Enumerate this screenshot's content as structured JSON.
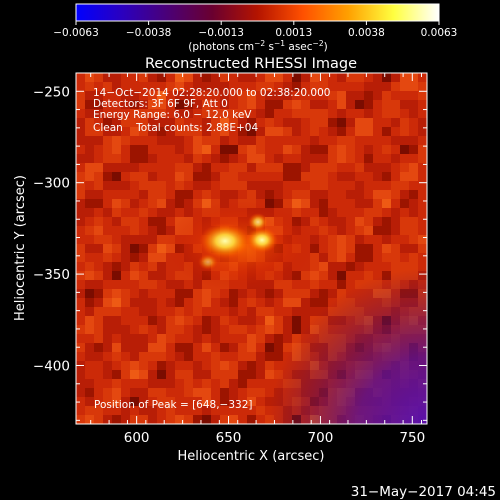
{
  "colorbar": {
    "ticks": [
      "−0.0063",
      "−0.0038",
      "−0.0013",
      "0.0013",
      "0.0038",
      "0.0063"
    ],
    "min": -0.0063,
    "max": 0.0063,
    "units_prefix": "(photons cm",
    "units_exp1": "−2",
    "units_mid1": " s",
    "units_exp2": "−1",
    "units_mid2": " asec",
    "units_exp3": "−2",
    "units_suffix": ")",
    "colors": [
      "#0000ff",
      "#2a00c0",
      "#4a0078",
      "#6a0030",
      "#b41400",
      "#ff5000",
      "#ffa000",
      "#ffff40",
      "#ffffff"
    ]
  },
  "chart_data": {
    "type": "heatmap",
    "title": "Reconstructed RHESSI Image",
    "xlabel": "Heliocentric X (arcsec)",
    "ylabel": "Heliocentric Y (arcsec)",
    "xlim": [
      567,
      758
    ],
    "ylim": [
      -432,
      -240
    ],
    "xticks": [
      "600",
      "650",
      "700",
      "750"
    ],
    "yticks": [
      "−250",
      "−300",
      "−350",
      "−400"
    ],
    "xtick_values": [
      600,
      650,
      700,
      750
    ],
    "ytick_values": [
      -250,
      -300,
      -350,
      -400
    ],
    "peak": [
      648,
      -332
    ],
    "annotations": [
      "14−Oct−2014 02:28:20.000 to 02:38:20.000",
      "Detectors: 3F 6F 9F, Att 0",
      "Energy Range: 6.0 − 12.0 keV",
      "Clean    Total counts: 2.88E+04"
    ],
    "peak_label": "Position of Peak = [648,−332]"
  },
  "footer": {
    "timestamp": "31−May−2017 04:45"
  }
}
